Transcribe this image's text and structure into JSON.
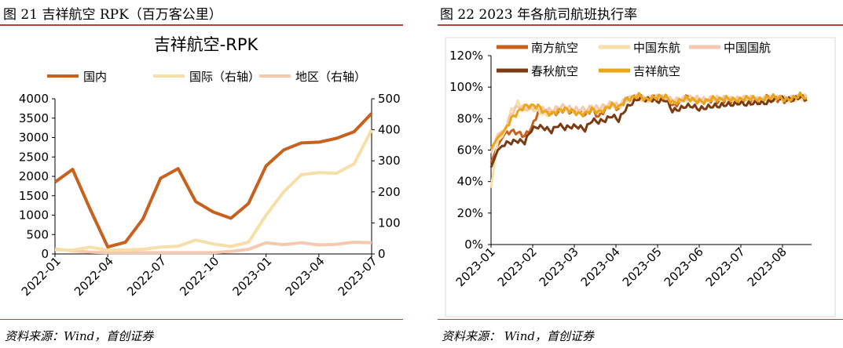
{
  "figures": {
    "left": {
      "caption": "图 21 吉祥航空 RPK（百万客公里）",
      "source": "资料来源：Wind，首创证券"
    },
    "right": {
      "caption": "图 22 2023 年各航司航班执行率",
      "source": "资料来源： Wind，首创证券"
    }
  },
  "colors": {
    "rule": "#b5433a",
    "domestic": "#c8601e",
    "international": "#f6dfa8",
    "regional": "#f5c8b0",
    "southern": "#c8601e",
    "china_eastern": "#f6dfa8",
    "air_china": "#f5c8b0",
    "spring": "#7a3a12",
    "juneyao": "#eba51a"
  },
  "chart_data": [
    {
      "type": "line",
      "title": "吉祥航空-RPK",
      "categories": [
        "2022-01",
        "2022-02",
        "2022-03",
        "2022-04",
        "2022-05",
        "2022-06",
        "2022-07",
        "2022-08",
        "2022-09",
        "2022-10",
        "2022-11",
        "2022-12",
        "2023-01",
        "2023-02",
        "2023-03",
        "2023-04",
        "2023-05",
        "2023-06",
        "2023-07"
      ],
      "x_tick_labels": [
        "2022-01",
        "2022-04",
        "2022-07",
        "2022-10",
        "2023-01",
        "2023-04",
        "2023-07"
      ],
      "series": [
        {
          "name": "国内",
          "axis": "left",
          "values": [
            1850,
            2180,
            1150,
            180,
            300,
            900,
            1950,
            2200,
            1350,
            1080,
            920,
            1300,
            2270,
            2680,
            2860,
            2880,
            2980,
            3150,
            3620
          ]
        },
        {
          "name": "国际（右轴）",
          "axis": "right",
          "values": [
            14,
            12,
            22,
            12,
            13,
            15,
            22,
            25,
            45,
            32,
            24,
            38,
            125,
            200,
            255,
            262,
            260,
            290,
            400
          ]
        },
        {
          "name": "地区（右轴）",
          "axis": "right",
          "values": [
            16,
            10,
            6,
            4,
            4,
            4,
            4,
            4,
            4,
            4,
            8,
            15,
            36,
            30,
            36,
            29,
            31,
            38,
            36
          ]
        }
      ],
      "ylim_left": [
        0,
        4000
      ],
      "y_ticks_left": [
        "0",
        "500",
        "1000",
        "1500",
        "2000",
        "2500",
        "3000",
        "3500",
        "4000"
      ],
      "ylim_right": [
        0,
        500
      ],
      "y_ticks_right": [
        "0",
        "100",
        "200",
        "300",
        "400",
        "500"
      ],
      "legend_position": "top"
    },
    {
      "type": "line",
      "title": "",
      "x_tick_labels": [
        "2023-01",
        "2023-02",
        "2023-03",
        "2023-04",
        "2023-05",
        "2023-06",
        "2023-07",
        "2023-08"
      ],
      "series": [
        {
          "name": "南方航空",
          "key": "southern",
          "values": [
            0.52,
            0.63,
            0.7,
            0.72,
            0.71,
            0.69,
            0.74,
            0.84,
            0.85,
            0.83,
            0.84,
            0.86,
            0.84,
            0.85,
            0.82,
            0.86,
            0.81,
            0.86,
            0.89,
            0.86,
            0.92,
            0.93,
            0.95,
            0.92,
            0.94,
            0.93,
            0.94,
            0.88,
            0.9,
            0.94,
            0.92,
            0.91,
            0.91,
            0.92,
            0.91,
            0.92,
            0.91,
            0.92,
            0.93,
            0.92,
            0.91,
            0.94,
            0.92,
            0.92,
            0.91,
            0.93,
            0.94,
            0.92
          ]
        },
        {
          "name": "中国东航",
          "key": "china_eastern",
          "values": [
            0.36,
            0.66,
            0.7,
            0.85,
            0.9,
            0.86,
            0.86,
            0.85,
            0.82,
            0.84,
            0.86,
            0.86,
            0.85,
            0.84,
            0.84,
            0.87,
            0.85,
            0.87,
            0.89,
            0.87,
            0.91,
            0.93,
            0.93,
            0.91,
            0.93,
            0.93,
            0.93,
            0.91,
            0.92,
            0.92,
            0.92,
            0.92,
            0.91,
            0.93,
            0.92,
            0.93,
            0.92,
            0.92,
            0.92,
            0.93,
            0.92,
            0.92,
            0.93,
            0.93,
            0.92,
            0.92,
            0.93,
            0.93
          ]
        },
        {
          "name": "中国国航",
          "key": "air_china",
          "values": [
            0.58,
            0.7,
            0.73,
            0.83,
            0.88,
            0.86,
            0.87,
            0.86,
            0.86,
            0.85,
            0.87,
            0.88,
            0.86,
            0.86,
            0.86,
            0.87,
            0.87,
            0.88,
            0.9,
            0.88,
            0.92,
            0.93,
            0.94,
            0.92,
            0.93,
            0.94,
            0.93,
            0.92,
            0.92,
            0.93,
            0.93,
            0.93,
            0.92,
            0.93,
            0.93,
            0.93,
            0.92,
            0.93,
            0.93,
            0.93,
            0.92,
            0.93,
            0.93,
            0.93,
            0.93,
            0.93,
            0.94,
            0.94
          ]
        },
        {
          "name": "春秋航空",
          "key": "spring",
          "values": [
            0.49,
            0.6,
            0.64,
            0.65,
            0.66,
            0.65,
            0.73,
            0.75,
            0.74,
            0.72,
            0.76,
            0.74,
            0.75,
            0.75,
            0.73,
            0.79,
            0.78,
            0.79,
            0.82,
            0.79,
            0.86,
            0.9,
            0.93,
            0.92,
            0.92,
            0.91,
            0.92,
            0.85,
            0.86,
            0.88,
            0.88,
            0.86,
            0.87,
            0.88,
            0.88,
            0.89,
            0.89,
            0.9,
            0.89,
            0.9,
            0.9,
            0.9,
            0.92,
            0.93,
            0.92,
            0.92,
            0.94,
            0.92
          ]
        },
        {
          "name": "吉祥航空",
          "key": "juneyao",
          "values": [
            0.61,
            0.68,
            0.72,
            0.8,
            0.84,
            0.88,
            0.88,
            0.88,
            0.84,
            0.83,
            0.85,
            0.86,
            0.85,
            0.83,
            0.83,
            0.86,
            0.84,
            0.86,
            0.89,
            0.87,
            0.92,
            0.93,
            0.95,
            0.92,
            0.93,
            0.94,
            0.94,
            0.9,
            0.91,
            0.93,
            0.92,
            0.91,
            0.91,
            0.93,
            0.92,
            0.93,
            0.92,
            0.92,
            0.93,
            0.93,
            0.92,
            0.93,
            0.94,
            0.93,
            0.92,
            0.93,
            0.95,
            0.93
          ]
        }
      ],
      "ylim": [
        0,
        1.2
      ],
      "y_ticks": [
        "0%",
        "20%",
        "40%",
        "60%",
        "80%",
        "100%",
        "120%"
      ],
      "legend_position": "top",
      "frame": true
    }
  ]
}
